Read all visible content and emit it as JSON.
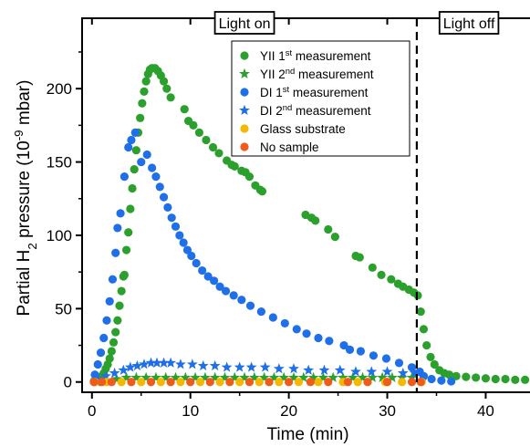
{
  "chart_data": {
    "type": "scatter",
    "xlabel": "Time (min)",
    "ylabel_main": "Partial H",
    "ylabel_sub": "2",
    "ylabel_rest": " pressure (10",
    "ylabel_sup": "-9",
    "ylabel_end": " mbar)",
    "xlim": [
      -1,
      44.5
    ],
    "ylim": [
      -7,
      248
    ],
    "xticks": [
      0,
      10,
      20,
      30,
      40
    ],
    "yticks": [
      0,
      50,
      100,
      150,
      200
    ],
    "grid": false,
    "legend_position": "top-right",
    "annotations": {
      "light_on": "Light on",
      "light_off": "Light off",
      "light_off_x": 33
    },
    "series": [
      {
        "label": "YII 1",
        "sup": "st",
        "tail": " measurement",
        "color": "#2ca02c",
        "marker": "circle",
        "points": [
          [
            0.2,
            0.5
          ],
          [
            0.5,
            1
          ],
          [
            0.8,
            2
          ],
          [
            1.0,
            4
          ],
          [
            1.2,
            6
          ],
          [
            1.4,
            9
          ],
          [
            1.6,
            12
          ],
          [
            1.8,
            16
          ],
          [
            2.0,
            21
          ],
          [
            2.2,
            27
          ],
          [
            2.4,
            34
          ],
          [
            2.6,
            42
          ],
          [
            2.8,
            52
          ],
          [
            3.0,
            62
          ],
          [
            3.2,
            72
          ],
          [
            3.3,
            73
          ],
          [
            3.5,
            90
          ],
          [
            3.7,
            102
          ],
          [
            3.9,
            118
          ],
          [
            4.1,
            132
          ],
          [
            4.3,
            145
          ],
          [
            4.5,
            158
          ],
          [
            4.7,
            170
          ],
          [
            4.9,
            180
          ],
          [
            5.1,
            190
          ],
          [
            5.3,
            198
          ],
          [
            5.5,
            205
          ],
          [
            5.7,
            210
          ],
          [
            5.9,
            213
          ],
          [
            6.1,
            214
          ],
          [
            6.4,
            214
          ],
          [
            6.7,
            212
          ],
          [
            7.0,
            209
          ],
          [
            7.3,
            205
          ],
          [
            7.6,
            200
          ],
          [
            8.0,
            194
          ],
          [
            9.4,
            186
          ],
          [
            9.8,
            178
          ],
          [
            10.3,
            175
          ],
          [
            10.9,
            170
          ],
          [
            11.6,
            165
          ],
          [
            12.3,
            160
          ],
          [
            12.9,
            156
          ],
          [
            13.7,
            151
          ],
          [
            14.2,
            148
          ],
          [
            14.5,
            147
          ],
          [
            15.2,
            144
          ],
          [
            15.6,
            143
          ],
          [
            16.0,
            140
          ],
          [
            16.6,
            134
          ],
          [
            17.1,
            131
          ],
          [
            17.3,
            130
          ],
          [
            21.7,
            114
          ],
          [
            22.3,
            112
          ],
          [
            22.7,
            110
          ],
          [
            24.0,
            104
          ],
          [
            24.7,
            99
          ],
          [
            26.8,
            86
          ],
          [
            27.2,
            85
          ],
          [
            28.5,
            78
          ],
          [
            29.4,
            73
          ],
          [
            30.4,
            70
          ],
          [
            31.1,
            67
          ],
          [
            31.6,
            65
          ],
          [
            32.2,
            63
          ],
          [
            32.7,
            61
          ],
          [
            33.1,
            59
          ],
          [
            33.4,
            48
          ],
          [
            33.7,
            36
          ],
          [
            34.0,
            25
          ],
          [
            34.4,
            17
          ],
          [
            34.8,
            12
          ],
          [
            35.3,
            8
          ],
          [
            35.8,
            6
          ],
          [
            36.3,
            5
          ],
          [
            37,
            4
          ],
          [
            38,
            3.5
          ],
          [
            39,
            3
          ],
          [
            40,
            2.5
          ],
          [
            41,
            2
          ],
          [
            42,
            2
          ],
          [
            43,
            1.5
          ],
          [
            44,
            1.5
          ]
        ]
      },
      {
        "label": "YII 2",
        "sup": "nd",
        "tail": " measurement",
        "color": "#2ca02c",
        "marker": "star",
        "points": [
          [
            0.5,
            0
          ],
          [
            1.5,
            1
          ],
          [
            2.5,
            2
          ],
          [
            3.5,
            3
          ],
          [
            4.5,
            3
          ],
          [
            5.5,
            3
          ],
          [
            6.5,
            3
          ],
          [
            7.5,
            3
          ],
          [
            8.5,
            3
          ],
          [
            9.5,
            3
          ],
          [
            10.5,
            3
          ],
          [
            11.5,
            3
          ],
          [
            12.5,
            3
          ],
          [
            13.5,
            3
          ],
          [
            14.5,
            3
          ],
          [
            15.5,
            3
          ],
          [
            16.5,
            3
          ],
          [
            17.5,
            3
          ],
          [
            18.5,
            3
          ],
          [
            19.5,
            3
          ],
          [
            20.5,
            3
          ],
          [
            21.5,
            3
          ],
          [
            22.5,
            3
          ],
          [
            23.5,
            3
          ],
          [
            24.5,
            3
          ],
          [
            25.5,
            3
          ],
          [
            26.5,
            3
          ],
          [
            27.5,
            3
          ],
          [
            28.5,
            3
          ],
          [
            29.5,
            3
          ],
          [
            30.5,
            3
          ],
          [
            31.5,
            3
          ],
          [
            32.5,
            3
          ]
        ]
      },
      {
        "label": "DI 1",
        "sup": "st",
        "tail": " measurement",
        "color": "#1f6fe8",
        "marker": "circle",
        "points": [
          [
            0.3,
            5
          ],
          [
            0.6,
            12
          ],
          [
            0.9,
            20
          ],
          [
            1.2,
            30
          ],
          [
            1.5,
            42
          ],
          [
            1.8,
            55
          ],
          [
            2.1,
            70
          ],
          [
            2.4,
            88
          ],
          [
            2.6,
            105
          ],
          [
            2.9,
            115
          ],
          [
            3.3,
            140
          ],
          [
            3.7,
            160
          ],
          [
            4.0,
            165
          ],
          [
            4.4,
            170
          ],
          [
            5.0,
            150
          ],
          [
            5.6,
            155
          ],
          [
            6.1,
            146
          ],
          [
            6.5,
            140
          ],
          [
            6.9,
            133
          ],
          [
            7.3,
            126
          ],
          [
            7.7,
            119
          ],
          [
            8.1,
            112
          ],
          [
            8.5,
            106
          ],
          [
            8.9,
            100
          ],
          [
            9.3,
            95
          ],
          [
            9.7,
            90
          ],
          [
            10.1,
            86
          ],
          [
            10.6,
            81
          ],
          [
            11.2,
            76
          ],
          [
            11.8,
            72
          ],
          [
            12.4,
            69
          ],
          [
            13.0,
            65
          ],
          [
            13.6,
            62
          ],
          [
            14.4,
            59
          ],
          [
            15.2,
            56
          ],
          [
            16.1,
            52
          ],
          [
            17.2,
            48
          ],
          [
            18.4,
            44
          ],
          [
            19.6,
            40
          ],
          [
            20.8,
            36
          ],
          [
            21.8,
            33
          ],
          [
            23.0,
            30
          ],
          [
            24.1,
            28
          ],
          [
            25.6,
            25
          ],
          [
            26.2,
            22
          ],
          [
            27.3,
            21
          ],
          [
            28.6,
            18
          ],
          [
            29.9,
            16
          ],
          [
            31.2,
            13
          ],
          [
            32.5,
            10
          ],
          [
            33.3,
            7
          ],
          [
            33.7,
            4
          ],
          [
            34.5,
            2
          ],
          [
            35.5,
            1
          ],
          [
            36.5,
            0.5
          ]
        ]
      },
      {
        "label": "DI 2",
        "sup": "nd",
        "tail": " measurement",
        "color": "#1f6fe8",
        "marker": "star",
        "points": [
          [
            0.6,
            2
          ],
          [
            1.4,
            4
          ],
          [
            2.3,
            6
          ],
          [
            3.2,
            8
          ],
          [
            3.9,
            10
          ],
          [
            4.6,
            11
          ],
          [
            5.3,
            12
          ],
          [
            6.0,
            13
          ],
          [
            6.6,
            13
          ],
          [
            7.3,
            13
          ],
          [
            8.0,
            13
          ],
          [
            9.0,
            12
          ],
          [
            10.2,
            12
          ],
          [
            11.3,
            11
          ],
          [
            12.5,
            11
          ],
          [
            13.7,
            10
          ],
          [
            15.0,
            10
          ],
          [
            16.2,
            10
          ],
          [
            17.6,
            10
          ],
          [
            19.0,
            9
          ],
          [
            20.5,
            9
          ],
          [
            22.0,
            8
          ],
          [
            23.6,
            8
          ],
          [
            25.2,
            8
          ],
          [
            26.8,
            7
          ],
          [
            28.4,
            7
          ],
          [
            30.0,
            7
          ],
          [
            31.6,
            6
          ],
          [
            32.8,
            6
          ],
          [
            33.6,
            4
          ]
        ]
      },
      {
        "label": "Glass substrate",
        "sup": "",
        "tail": "",
        "color": "#f5b800",
        "marker": "circle",
        "points": [
          [
            0.3,
            0
          ],
          [
            1.5,
            0
          ],
          [
            3,
            0
          ],
          [
            5,
            0
          ],
          [
            7,
            0
          ],
          [
            9,
            0
          ],
          [
            11,
            0
          ],
          [
            13,
            0
          ],
          [
            15,
            0
          ],
          [
            17,
            0
          ],
          [
            19,
            0
          ],
          [
            21,
            0
          ],
          [
            23,
            0
          ],
          [
            25.5,
            0
          ],
          [
            27,
            0
          ],
          [
            29.8,
            0
          ],
          [
            31.5,
            0
          ],
          [
            33.5,
            0
          ]
        ]
      },
      {
        "label": "No sample",
        "sup": "",
        "tail": "",
        "color": "#f05a1a",
        "marker": "circle",
        "points": [
          [
            0.2,
            0
          ],
          [
            1.0,
            0
          ],
          [
            2.0,
            0
          ],
          [
            4.0,
            0
          ],
          [
            6.0,
            0
          ],
          [
            8.0,
            0
          ],
          [
            10.0,
            0
          ],
          [
            12.0,
            0
          ],
          [
            14.0,
            0
          ],
          [
            16.0,
            0
          ],
          [
            18.0,
            0
          ],
          [
            20.0,
            0
          ],
          [
            22.2,
            0
          ],
          [
            24.0,
            0
          ],
          [
            26.0,
            0
          ],
          [
            28.0,
            0
          ],
          [
            30.0,
            0
          ],
          [
            32.5,
            0
          ],
          [
            33.4,
            0
          ]
        ]
      }
    ]
  }
}
